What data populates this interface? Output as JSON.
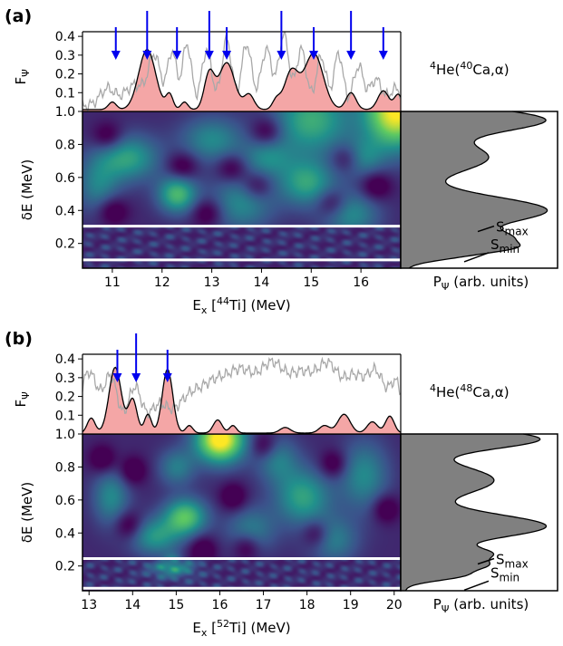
{
  "chart_data": [
    {
      "type": "heatmap",
      "panel_label": "(a)",
      "reaction": {
        "sup_mass": "4",
        "pre": "He(",
        "sup_target": "40",
        "post": "Ca,α)"
      },
      "top_ylabel": {
        "main": "F",
        "sub": "Ψ"
      },
      "top_yticks": [
        "0.1",
        "0.2",
        "0.3",
        "0.4"
      ],
      "top_ylim": [
        0,
        0.42
      ],
      "heat_ylabel": "δE (MeV)",
      "heat_yticks": [
        "0.2",
        "0.4",
        "0.6",
        "0.8",
        "1.0"
      ],
      "heat_ylim": [
        0.05,
        1.0
      ],
      "xlabel": {
        "pre": "E",
        "sub": "x",
        "mid": " [",
        "sup": "44",
        "post": "Ti] (MeV)"
      },
      "xticks": [
        "11",
        "12",
        "13",
        "14",
        "15",
        "16"
      ],
      "xlim": [
        10.4,
        16.8
      ],
      "side_xlabel": {
        "main": "P",
        "sub": "Ψ",
        "rest": " (arb. units)"
      },
      "arrows_x": [
        11.07,
        11.7,
        12.3,
        12.95,
        13.3,
        14.4,
        15.05,
        15.8,
        16.45
      ],
      "white_lines_y": [
        0.305,
        0.1
      ],
      "smax": {
        "main": "S",
        "sub": "max"
      },
      "smin": {
        "main": "S",
        "sub": "min"
      },
      "black_peaks": [
        [
          11.0,
          0.04,
          0.08
        ],
        [
          11.7,
          0.32,
          0.17
        ],
        [
          12.15,
          0.08,
          0.07
        ],
        [
          12.45,
          0.04,
          0.07
        ],
        [
          12.95,
          0.19,
          0.1
        ],
        [
          13.3,
          0.25,
          0.16
        ],
        [
          13.75,
          0.08,
          0.1
        ],
        [
          14.3,
          0.05,
          0.08
        ],
        [
          14.6,
          0.2,
          0.14
        ],
        [
          15.05,
          0.3,
          0.19
        ],
        [
          15.8,
          0.09,
          0.1
        ],
        [
          16.45,
          0.1,
          0.11
        ],
        [
          16.75,
          0.08,
          0.08
        ]
      ],
      "black_base": 0.01,
      "grey_peaks": [
        [
          10.9,
          0.09,
          0.15
        ],
        [
          11.45,
          0.11,
          0.2
        ],
        [
          11.85,
          0.26,
          0.12
        ],
        [
          12.2,
          0.29,
          0.09
        ],
        [
          12.5,
          0.33,
          0.09
        ],
        [
          12.9,
          0.3,
          0.1
        ],
        [
          13.3,
          0.35,
          0.1
        ],
        [
          13.7,
          0.33,
          0.1
        ],
        [
          14.1,
          0.3,
          0.11
        ],
        [
          14.45,
          0.38,
          0.1
        ],
        [
          14.8,
          0.3,
          0.1
        ],
        [
          15.2,
          0.26,
          0.1
        ],
        [
          15.55,
          0.28,
          0.09
        ],
        [
          15.95,
          0.21,
          0.1
        ],
        [
          16.3,
          0.14,
          0.12
        ],
        [
          16.7,
          0.09,
          0.12
        ]
      ],
      "grey_base": 0.03,
      "heat_blobs": [
        [
          16.7,
          1.0,
          0.45,
          0.16,
          0.9
        ],
        [
          15.0,
          0.95,
          0.55,
          0.15,
          0.5
        ],
        [
          12.3,
          0.5,
          0.28,
          0.08,
          0.55
        ],
        [
          14.9,
          0.57,
          0.4,
          0.1,
          0.45
        ],
        [
          11.3,
          0.72,
          0.45,
          0.1,
          0.45
        ],
        [
          13.0,
          0.83,
          0.45,
          0.1,
          0.35
        ],
        [
          13.6,
          0.45,
          0.45,
          0.12,
          0.35
        ],
        [
          15.8,
          0.38,
          0.4,
          0.1,
          0.35
        ],
        [
          10.7,
          0.55,
          0.3,
          0.12,
          0.3
        ],
        [
          14.1,
          0.72,
          0.35,
          0.08,
          0.3
        ],
        [
          16.0,
          0.72,
          0.3,
          0.08,
          0.3
        ]
      ],
      "heat_dark_spots": [
        [
          14.1,
          0.88
        ],
        [
          15.7,
          0.72
        ],
        [
          11.0,
          0.4
        ],
        [
          12.4,
          0.67
        ],
        [
          13.9,
          0.55
        ],
        [
          15.4,
          0.45
        ],
        [
          16.3,
          0.55
        ],
        [
          10.9,
          0.85
        ],
        [
          12.9,
          0.39
        ],
        [
          13.4,
          0.66
        ]
      ],
      "heat_base": 0.12,
      "side_curve": {
        "base": 0.04,
        "peaks": [
          [
            0.95,
            0.92,
            0.07
          ],
          [
            0.72,
            0.55,
            0.09
          ],
          [
            0.4,
            0.95,
            0.085
          ],
          [
            0.23,
            0.55,
            0.045
          ],
          [
            0.17,
            0.42,
            0.03
          ],
          [
            0.12,
            0.25,
            0.03
          ]
        ]
      }
    },
    {
      "type": "heatmap",
      "panel_label": "(b)",
      "reaction": {
        "sup_mass": "4",
        "pre": "He(",
        "sup_target": "48",
        "post": "Ca,α)"
      },
      "top_ylabel": {
        "main": "F",
        "sub": "Ψ"
      },
      "top_yticks": [
        "0.1",
        "0.2",
        "0.3",
        "0.4"
      ],
      "top_ylim": [
        0,
        0.42
      ],
      "heat_ylabel": "δE (MeV)",
      "heat_yticks": [
        "0.2",
        "0.4",
        "0.6",
        "0.8",
        "1.0"
      ],
      "heat_ylim": [
        0.05,
        1.0
      ],
      "xlabel": {
        "pre": "E",
        "sub": "x",
        "mid": " [",
        "sup": "52",
        "post": "Ti] (MeV)"
      },
      "xticks": [
        "13",
        "14",
        "15",
        "16",
        "17",
        "18",
        "19",
        "20"
      ],
      "xlim": [
        12.85,
        20.15
      ],
      "side_xlabel": {
        "main": "P",
        "sub": "Ψ",
        "rest": " (arb. units)"
      },
      "arrows_x": [
        13.65,
        14.08,
        14.8
      ],
      "white_lines_y": [
        0.245,
        0.065
      ],
      "smax": {
        "main": "S",
        "sub": "max"
      },
      "smin": {
        "main": "S",
        "sub": "min"
      },
      "black_peaks": [
        [
          13.05,
          0.08,
          0.09
        ],
        [
          13.6,
          0.35,
          0.14
        ],
        [
          14.0,
          0.18,
          0.1
        ],
        [
          14.35,
          0.1,
          0.08
        ],
        [
          14.8,
          0.34,
          0.12
        ],
        [
          15.3,
          0.04,
          0.08
        ],
        [
          15.95,
          0.07,
          0.1
        ],
        [
          16.3,
          0.04,
          0.08
        ],
        [
          17.5,
          0.03,
          0.12
        ],
        [
          18.4,
          0.04,
          0.12
        ],
        [
          18.85,
          0.1,
          0.14
        ],
        [
          19.5,
          0.06,
          0.12
        ],
        [
          19.9,
          0.09,
          0.1
        ]
      ],
      "black_base": 0.005,
      "grey_peaks": [
        [
          13.0,
          0.3,
          0.2
        ],
        [
          13.5,
          0.27,
          0.15
        ],
        [
          14.05,
          0.22,
          0.15
        ],
        [
          14.6,
          0.12,
          0.2
        ],
        [
          15.3,
          0.16,
          0.3
        ],
        [
          15.9,
          0.21,
          0.3
        ],
        [
          16.5,
          0.27,
          0.3
        ],
        [
          17.2,
          0.32,
          0.3
        ],
        [
          17.9,
          0.27,
          0.3
        ],
        [
          18.5,
          0.3,
          0.25
        ],
        [
          19.1,
          0.26,
          0.25
        ],
        [
          19.6,
          0.27,
          0.2
        ],
        [
          20.05,
          0.23,
          0.15
        ]
      ],
      "grey_base": 0.03,
      "heat_blobs": [
        [
          16.0,
          0.97,
          0.4,
          0.1,
          0.95
        ],
        [
          15.2,
          0.5,
          0.35,
          0.08,
          0.6
        ],
        [
          14.5,
          0.38,
          0.4,
          0.08,
          0.4
        ],
        [
          17.9,
          0.62,
          0.45,
          0.12,
          0.45
        ],
        [
          13.5,
          0.62,
          0.3,
          0.12,
          0.35
        ],
        [
          19.3,
          0.75,
          0.4,
          0.15,
          0.35
        ],
        [
          16.7,
          0.42,
          0.4,
          0.1,
          0.3
        ],
        [
          18.6,
          0.36,
          0.4,
          0.1,
          0.3
        ],
        [
          15.0,
          0.8,
          0.3,
          0.08,
          0.3
        ],
        [
          17.3,
          0.85,
          0.35,
          0.1,
          0.3
        ],
        [
          14.9,
          0.19,
          0.15,
          0.05,
          0.55
        ]
      ],
      "heat_dark_spots": [
        [
          13.3,
          0.85
        ],
        [
          14.0,
          0.78
        ],
        [
          17.0,
          0.93
        ],
        [
          18.6,
          0.82
        ],
        [
          16.3,
          0.62
        ],
        [
          19.8,
          0.55
        ],
        [
          15.6,
          0.3
        ],
        [
          16.6,
          0.32
        ],
        [
          18.2,
          0.4
        ],
        [
          13.9,
          0.45
        ]
      ],
      "heat_base": 0.12,
      "side_curve": {
        "base": 0.03,
        "peaks": [
          [
            0.97,
            0.9,
            0.06
          ],
          [
            0.72,
            0.6,
            0.09
          ],
          [
            0.44,
            0.95,
            0.075
          ],
          [
            0.27,
            0.5,
            0.04
          ],
          [
            0.2,
            0.4,
            0.03
          ],
          [
            0.14,
            0.35,
            0.03
          ]
        ]
      }
    }
  ]
}
